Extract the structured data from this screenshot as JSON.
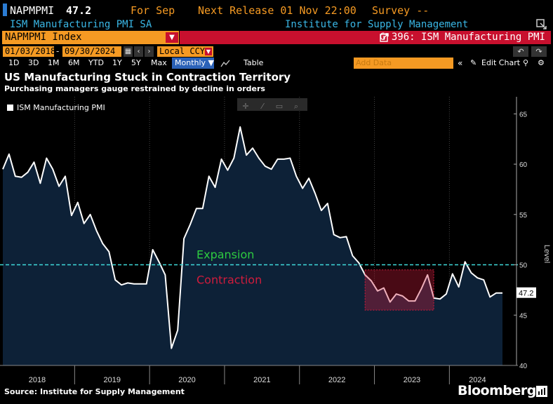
{
  "header": {
    "ticker": "NAPMPMI",
    "last_value": "47.2",
    "for_period": "For Sep",
    "next_release": "Next Release 01 Nov 22:00",
    "survey": "Survey --",
    "description": "ISM Manufacturing PMI SA",
    "source_name": "Institute for Supply Management"
  },
  "security_bar": {
    "security": "NAPMPMI Index",
    "graph_title": "G 396: ISM Manufacturing PMI"
  },
  "controls": {
    "start_date": "01/03/2018",
    "end_date": "09/30/2024",
    "currency": "Local CCY",
    "periods": [
      "1D",
      "3D",
      "1M",
      "6M",
      "YTD",
      "1Y",
      "5Y",
      "Max"
    ],
    "frequency": "Monthly",
    "table_label": "Table",
    "add_data_placeholder": "Add Data",
    "edit_chart_label": "Edit Chart"
  },
  "chart_data": {
    "type": "area",
    "title": "US Manufacturing Stuck in Contraction Territory",
    "subtitle": "Purchasing managers gauge restrained by decline in orders",
    "ylabel": "Level",
    "ylim": [
      40,
      66
    ],
    "yticks": [
      40,
      45,
      50,
      55,
      60,
      65
    ],
    "x_start": "2018-01",
    "x_end": "2024-09",
    "year_labels": [
      "2018",
      "2019",
      "2020",
      "2021",
      "2022",
      "2023",
      "2024"
    ],
    "legend_position": "top-left",
    "series": [
      {
        "name": "ISM Manufacturing PMI",
        "color": "#ffffff",
        "fill": "#0d2137",
        "last_label": "47.2",
        "values": [
          59.5,
          61.0,
          58.8,
          58.7,
          59.2,
          60.2,
          58.1,
          60.6,
          59.5,
          57.8,
          58.8,
          54.9,
          56.2,
          54.1,
          55.0,
          53.4,
          52.1,
          51.3,
          48.5,
          48.0,
          48.2,
          48.1,
          48.1,
          48.1,
          51.5,
          50.3,
          49.0,
          41.7,
          43.5,
          52.6,
          54.0,
          55.6,
          55.6,
          58.8,
          57.7,
          60.5,
          59.4,
          60.6,
          63.7,
          60.9,
          61.6,
          60.6,
          59.8,
          59.5,
          60.5,
          60.5,
          60.6,
          58.8,
          57.6,
          58.6,
          57.1,
          55.4,
          56.1,
          53.0,
          52.7,
          52.8,
          50.9,
          50.2,
          49.0,
          48.4,
          47.4,
          47.7,
          46.3,
          47.1,
          46.9,
          46.4,
          46.4,
          47.6,
          49.0,
          46.7,
          46.6,
          47.1,
          49.1,
          47.8,
          50.3,
          49.2,
          48.7,
          48.5,
          46.8,
          47.2,
          47.2
        ]
      }
    ],
    "reference_line": {
      "value": 50,
      "color": "#3ed9d9"
    },
    "annotations": [
      {
        "text": "Expansion",
        "color": "#2ecc40"
      },
      {
        "text": "Contraction",
        "color": "#d01c3c"
      }
    ],
    "highlight": {
      "x_from": "2022-11",
      "x_to": "2023-10",
      "y_from": 45.5,
      "y_to": 49.5,
      "color": "#d01c3c"
    }
  },
  "footer": {
    "source": "Source: Institute for Supply Management",
    "brand": "Bloomberg"
  }
}
